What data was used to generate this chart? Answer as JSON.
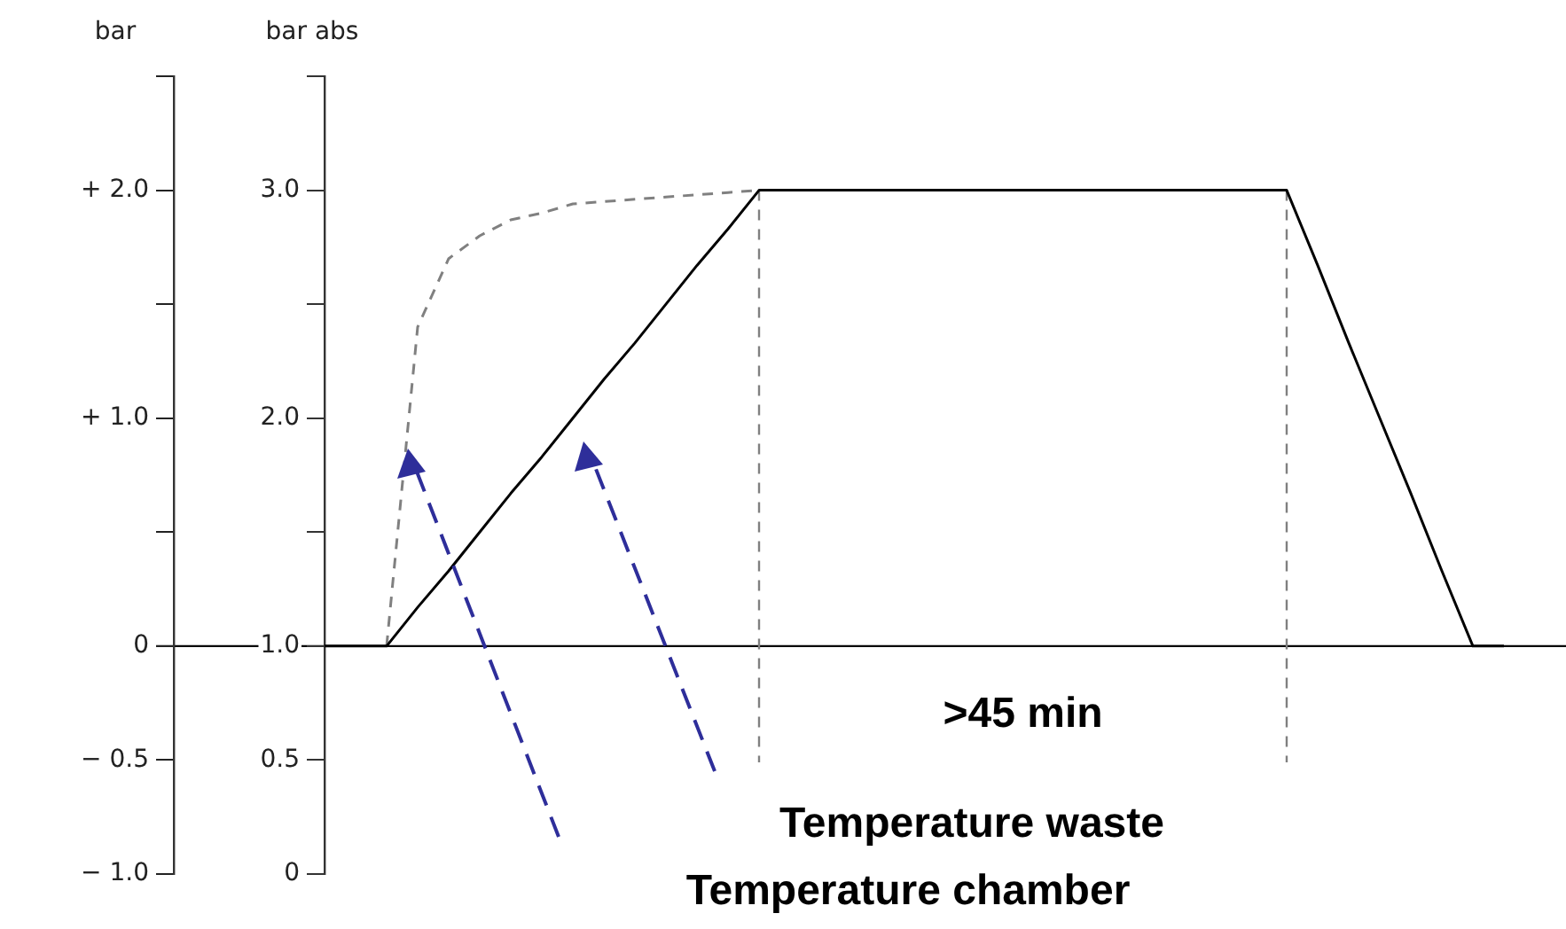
{
  "chart_data": {
    "type": "line",
    "ylabel": "bar",
    "y2label": "bar abs",
    "categories": [
      null,
      null,
      null,
      null,
      null,
      null,
      null,
      null,
      null,
      null,
      null,
      null,
      null,
      null,
      null,
      null,
      null,
      null,
      null,
      null,
      null,
      null,
      null,
      null,
      null,
      null,
      null,
      null,
      null,
      null,
      null,
      null,
      null,
      null,
      null,
      null,
      null,
      null,
      null,
      null,
      null
    ],
    "series": [
      {
        "color": "#000000",
        "line_style": "solid",
        "values": [
          0,
          0,
          0,
          0.17,
          0.33,
          0.5,
          0.67,
          0.83,
          1.0,
          1.17,
          1.33,
          1.5,
          1.67,
          1.83,
          2.0,
          2.0,
          2.0,
          2.0,
          2.0,
          2.0,
          2.0,
          2.0,
          2.0,
          2.0,
          2.0,
          2.0,
          2.0,
          2.0,
          2.0,
          2.0,
          2.0,
          2.0,
          1.67,
          1.33,
          1.0,
          0.67,
          0.33,
          0,
          0,
          null,
          null
        ]
      },
      {
        "color": "#808080",
        "line_style": "dashed",
        "values": [
          null,
          null,
          0,
          1.4,
          1.7,
          1.8,
          1.87,
          1.9,
          1.94,
          1.95,
          1.96,
          1.97,
          1.98,
          1.99,
          2.0,
          null,
          null,
          null,
          null,
          null,
          null,
          null,
          null,
          null,
          null,
          null,
          null,
          null,
          null,
          null,
          null,
          null,
          null,
          null,
          null,
          null,
          null,
          null,
          null,
          null,
          null
        ]
      }
    ],
    "ylim": [
      -1.0,
      2.5
    ],
    "yticks": [
      {
        "value": 2.5,
        "label": null
      },
      {
        "value": 2.0,
        "label": "+ 2.0"
      },
      {
        "value": 1.5,
        "label": null
      },
      {
        "value": 1.0,
        "label": "+ 1.0"
      },
      {
        "value": 0.5,
        "label": null
      },
      0,
      {
        "value": -0.5,
        "label": "− 0.5"
      },
      {
        "value": -1.0,
        "label": "− 1.0"
      }
    ],
    "y2lim": [
      0,
      3.5
    ],
    "y2ticks": [
      {
        "value": 3.5,
        "label": null
      },
      {
        "value": 3,
        "label": "3.0"
      },
      {
        "value": 2.5,
        "label": null
      },
      {
        "value": 2,
        "label": "2.0"
      },
      {
        "value": 1.5,
        "label": null
      },
      {
        "value": 1,
        "label": "1.0"
      },
      {
        "value": 0.5,
        "label": "0.5"
      },
      0
    ],
    "ref_lines": [
      {
        "axis": "y",
        "value": 0,
        "color": "#000000",
        "line_style": "solid"
      }
    ],
    "annotations": [
      ">45 min",
      "Temperature waste",
      "Temperature chamber"
    ],
    "tick_labels": "y",
    "grid": false,
    "legend": false,
    "marker": "none"
  }
}
